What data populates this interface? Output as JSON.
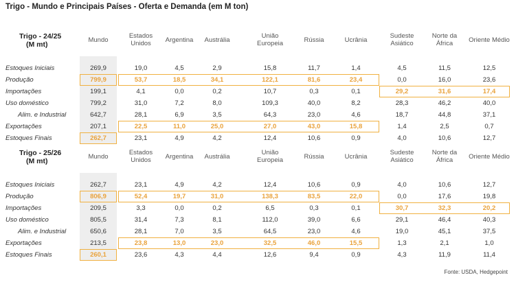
{
  "page": {
    "title": "Trigo - Mundo e Principais Países - Oferta e Demanda (em M ton)",
    "source": "Fonte: USDA, Hedgepoint"
  },
  "columns": [
    "Mundo",
    "Estados Unidos",
    "Argentina",
    "Austrália",
    "União Europeia",
    "Rússia",
    "Ucrânia",
    "Sudeste Asiático",
    "Norte da África",
    "Oriente Médio"
  ],
  "tables": [
    {
      "title_line1": "Trigo - 24/25",
      "title_line2": "(M mt)",
      "rows": [
        {
          "label": "Estoques Iniciais",
          "values": [
            "269,9",
            "19,0",
            "4,5",
            "2,9",
            "15,8",
            "11,7",
            "1,4",
            "4,5",
            "11,5",
            "12,5"
          ]
        },
        {
          "label": "Produção",
          "values": [
            "799,9",
            "53,7",
            "18,5",
            "34,1",
            "122,1",
            "81,6",
            "23,4",
            "0,0",
            "16,0",
            "23,6"
          ]
        },
        {
          "label": "Importações",
          "values": [
            "199,1",
            "4,1",
            "0,0",
            "0,2",
            "10,7",
            "0,3",
            "0,1",
            "29,2",
            "31,6",
            "17,4"
          ]
        },
        {
          "label": "Uso doméstico",
          "values": [
            "799,2",
            "31,0",
            "7,2",
            "8,0",
            "109,3",
            "40,0",
            "8,2",
            "28,3",
            "46,2",
            "40,0"
          ]
        },
        {
          "label": "Alim. e Industrial",
          "values": [
            "642,7",
            "28,1",
            "6,9",
            "3,5",
            "64,3",
            "23,0",
            "4,6",
            "18,7",
            "44,8",
            "37,1"
          ]
        },
        {
          "label": "Exportações",
          "values": [
            "207,1",
            "22,5",
            "11,0",
            "25,0",
            "27,0",
            "43,0",
            "15,8",
            "1,4",
            "2,5",
            "0,7"
          ]
        },
        {
          "label": "Estoques Finais",
          "values": [
            "262,7",
            "23,1",
            "4,9",
            "4,2",
            "12,4",
            "10,6",
            "0,9",
            "4,0",
            "10,6",
            "12,7"
          ]
        }
      ]
    },
    {
      "title_line1": "Trigo - 25/26",
      "title_line2": "(M mt)",
      "rows": [
        {
          "label": "Estoques Iniciais",
          "values": [
            "262,7",
            "23,1",
            "4,9",
            "4,2",
            "12,4",
            "10,6",
            "0,9",
            "4,0",
            "10,6",
            "12,7"
          ]
        },
        {
          "label": "Produção",
          "values": [
            "806,9",
            "52,4",
            "19,7",
            "31,0",
            "138,3",
            "83,5",
            "22,0",
            "0,0",
            "17,6",
            "19,8"
          ]
        },
        {
          "label": "Importações",
          "values": [
            "209,5",
            "3,3",
            "0,0",
            "0,2",
            "6,5",
            "0,3",
            "0,1",
            "30,7",
            "32,3",
            "20,2"
          ]
        },
        {
          "label": "Uso doméstico",
          "values": [
            "805,5",
            "31,4",
            "7,3",
            "8,1",
            "112,0",
            "39,0",
            "6,6",
            "29,1",
            "46,4",
            "40,3"
          ]
        },
        {
          "label": "Alim. e Industrial",
          "values": [
            "650,6",
            "28,1",
            "7,0",
            "3,5",
            "64,5",
            "23,0",
            "4,6",
            "19,0",
            "45,1",
            "37,5"
          ]
        },
        {
          "label": "Exportações",
          "values": [
            "213,5",
            "23,8",
            "13,0",
            "23,0",
            "32,5",
            "46,0",
            "15,5",
            "1,3",
            "2,1",
            "1,0"
          ]
        },
        {
          "label": "Estoques Finais",
          "values": [
            "260,1",
            "23,6",
            "4,3",
            "4,4",
            "12,6",
            "9,4",
            "0,9",
            "4,3",
            "11,9",
            "11,4"
          ]
        }
      ]
    }
  ],
  "highlight_color": "#f0b03f"
}
